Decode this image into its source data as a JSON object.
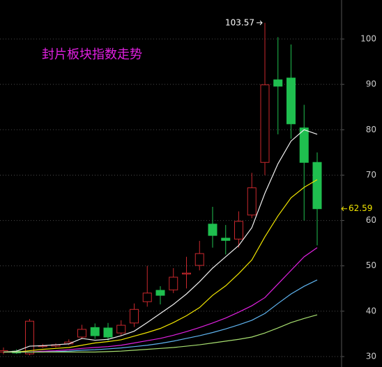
{
  "chart_data": {
    "type": "candlestick",
    "title": "封片板块指数走势",
    "open": [
      31,
      31.2,
      30.6,
      32.2,
      32.3,
      32.8,
      34.3,
      36.4,
      36.3,
      35.2,
      37.4,
      42.1,
      44.6,
      44.7,
      48.2,
      50.1,
      59.2,
      56.1,
      55.9,
      61.2,
      72.8,
      91,
      91.4,
      80.4,
      72.8
    ],
    "high": [
      32,
      31.6,
      38.3,
      32.8,
      32.9,
      33.8,
      37,
      37.3,
      37.4,
      38,
      41.7,
      50,
      45.5,
      49.5,
      52,
      55.5,
      63,
      59,
      62,
      70.5,
      103.57,
      100.4,
      98.8,
      85.5,
      75
    ],
    "low": [
      30.5,
      30.6,
      30.3,
      31.9,
      32,
      32.5,
      33.8,
      33.9,
      33.5,
      34.6,
      36.5,
      41,
      41.5,
      44,
      45,
      49,
      54,
      52.5,
      54,
      60.5,
      70,
      79,
      78,
      60,
      54.5
    ],
    "close": [
      31.3,
      30.8,
      37.8,
      32.4,
      32.6,
      33.2,
      36,
      34.6,
      34.3,
      36.9,
      40.4,
      44,
      43.5,
      47.5,
      48.4,
      52.7,
      56.7,
      55.6,
      59.8,
      67.2,
      89.9,
      89.6,
      81.3,
      72.8,
      62.59
    ],
    "up_color": "#c8282d",
    "down_color": "#1fbf4f",
    "series": [
      {
        "color": "#f0f0f0",
        "values": [
          31,
          31.2,
          32.3,
          32.4,
          32.6,
          32.8,
          34,
          33.6,
          33.8,
          34.6,
          35.6,
          37.5,
          39.5,
          41.5,
          43.8,
          46.5,
          49.5,
          52,
          54.5,
          58.4,
          66,
          72.5,
          77.5,
          80,
          79
        ]
      },
      {
        "color": "#f2e600",
        "values": [
          31,
          31,
          31.3,
          31.6,
          31.8,
          32,
          32.5,
          33,
          33.3,
          33.7,
          34.5,
          35.3,
          36.2,
          37.5,
          39,
          40.8,
          43.5,
          45.6,
          48.3,
          51.3,
          56.4,
          61,
          65,
          67.3,
          69
        ]
      },
      {
        "color": "#e020e0",
        "values": [
          31,
          31,
          31,
          31.2,
          31.3,
          31.5,
          31.8,
          32,
          32.2,
          32.5,
          33,
          33.5,
          34,
          34.7,
          35.5,
          36.4,
          37.4,
          38.5,
          39.8,
          41.2,
          43,
          46,
          49,
          52,
          54
        ]
      },
      {
        "color": "#5fb4f0",
        "values": [
          31,
          31,
          31,
          31,
          31.1,
          31.2,
          31.4,
          31.5,
          31.7,
          31.9,
          32.2,
          32.5,
          32.9,
          33.4,
          34,
          34.6,
          35.3,
          36.1,
          37,
          38,
          39.5,
          41.7,
          43.8,
          45.5,
          46.9
        ]
      },
      {
        "color": "#a8e070",
        "values": [
          31,
          31,
          31,
          31,
          31,
          31,
          31,
          31,
          31.1,
          31.2,
          31.4,
          31.6,
          31.8,
          32,
          32.3,
          32.6,
          33,
          33.4,
          33.8,
          34.3,
          35.2,
          36.3,
          37.5,
          38.4,
          39.2
        ]
      }
    ],
    "annotations": [
      "103.57",
      "62.59"
    ],
    "ylim": [
      27.7,
      108.6
    ],
    "yticks": [
      30,
      40,
      50,
      60,
      70,
      80,
      90,
      100
    ],
    "grid": true
  }
}
